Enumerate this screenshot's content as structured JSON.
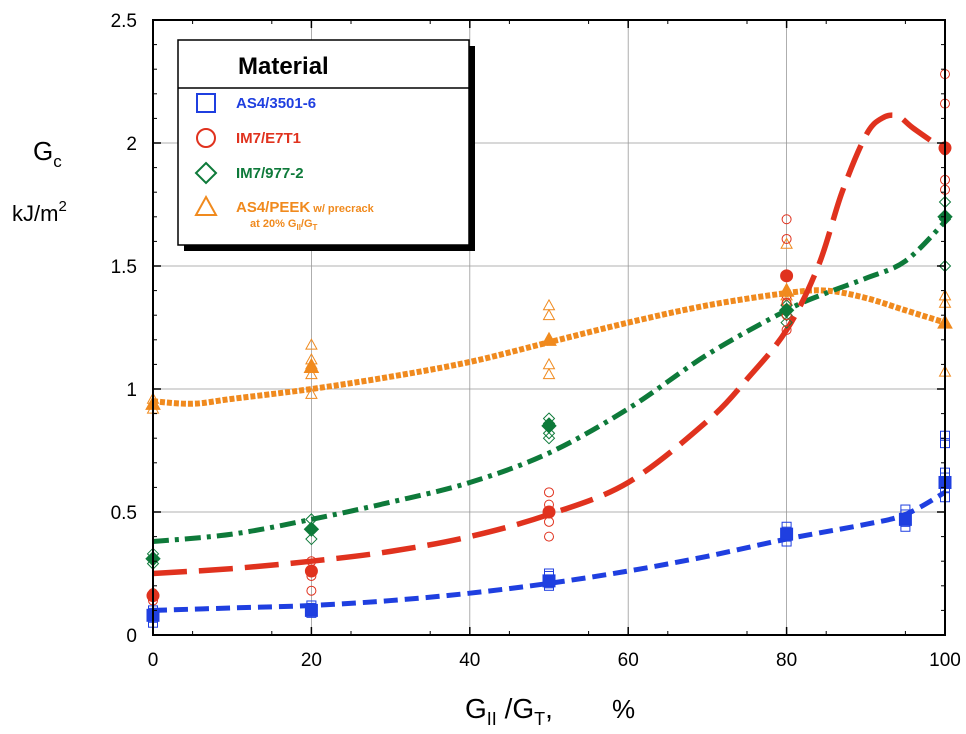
{
  "chart_data": {
    "type": "scatter",
    "xlabel": {
      "main": "G",
      "sub1": "II",
      "mid": " /G",
      "sub2": "T",
      "tail": ",",
      "unit": "%"
    },
    "ylabel": {
      "main": "G",
      "sub": "c",
      "unit": "kJ/m",
      "sup": "2"
    },
    "xlim": [
      0,
      100
    ],
    "ylim": [
      0,
      2.5
    ],
    "xticks": [
      "0",
      "20",
      "40",
      "60",
      "80",
      "100"
    ],
    "yticks": [
      "0",
      "0.5",
      "1",
      "1.5",
      "2",
      "2.5"
    ],
    "grid": true,
    "legend": {
      "title": "Material",
      "placement": "top-left",
      "sub_label": {
        "pre": "at 20% G",
        "s1": "II",
        "mid": "/G",
        "s2": "T"
      }
    },
    "series": [
      {
        "name": "AS4/3501-6",
        "color": "#1f3fe0",
        "marker": "square",
        "line_style": "short-dash",
        "raw_points": [
          [
            0,
            0.05
          ],
          [
            0,
            0.07
          ],
          [
            0,
            0.09
          ],
          [
            0,
            0.1
          ],
          [
            20,
            0.09
          ],
          [
            20,
            0.11
          ],
          [
            20,
            0.12
          ],
          [
            50,
            0.2
          ],
          [
            50,
            0.21
          ],
          [
            50,
            0.22
          ],
          [
            50,
            0.24
          ],
          [
            50,
            0.25
          ],
          [
            80,
            0.38
          ],
          [
            80,
            0.4
          ],
          [
            80,
            0.42
          ],
          [
            80,
            0.44
          ],
          [
            95,
            0.44
          ],
          [
            95,
            0.46
          ],
          [
            95,
            0.49
          ],
          [
            95,
            0.51
          ],
          [
            100,
            0.56
          ],
          [
            100,
            0.6
          ],
          [
            100,
            0.64
          ],
          [
            100,
            0.66
          ],
          [
            100,
            0.78
          ],
          [
            100,
            0.81
          ]
        ],
        "mean_points": [
          [
            0,
            0.08
          ],
          [
            20,
            0.1
          ],
          [
            50,
            0.22
          ],
          [
            80,
            0.41
          ],
          [
            95,
            0.47
          ],
          [
            100,
            0.62
          ]
        ],
        "fit_curve": [
          [
            0,
            0.1
          ],
          [
            10,
            0.11
          ],
          [
            20,
            0.12
          ],
          [
            30,
            0.14
          ],
          [
            40,
            0.17
          ],
          [
            50,
            0.21
          ],
          [
            60,
            0.26
          ],
          [
            70,
            0.32
          ],
          [
            80,
            0.39
          ],
          [
            90,
            0.45
          ],
          [
            95,
            0.49
          ],
          [
            100,
            0.58
          ]
        ]
      },
      {
        "name": "IM7/E7T1",
        "color": "#e0321e",
        "marker": "circle",
        "line_style": "long-dash",
        "raw_points": [
          [
            0,
            0.14
          ],
          [
            0,
            0.17
          ],
          [
            20,
            0.18
          ],
          [
            20,
            0.24
          ],
          [
            20,
            0.26
          ],
          [
            20,
            0.3
          ],
          [
            50,
            0.4
          ],
          [
            50,
            0.46
          ],
          [
            50,
            0.5
          ],
          [
            50,
            0.53
          ],
          [
            50,
            0.58
          ],
          [
            80,
            1.24
          ],
          [
            80,
            1.3
          ],
          [
            80,
            1.35
          ],
          [
            80,
            1.38
          ],
          [
            80,
            1.61
          ],
          [
            80,
            1.69
          ],
          [
            100,
            1.81
          ],
          [
            100,
            1.85
          ],
          [
            100,
            1.97
          ],
          [
            100,
            2.16
          ],
          [
            100,
            2.28
          ]
        ],
        "mean_points": [
          [
            0,
            0.16
          ],
          [
            20,
            0.26
          ],
          [
            50,
            0.5
          ],
          [
            80,
            1.46
          ],
          [
            100,
            1.98
          ]
        ],
        "fit_curve": [
          [
            0,
            0.25
          ],
          [
            10,
            0.27
          ],
          [
            20,
            0.3
          ],
          [
            30,
            0.34
          ],
          [
            40,
            0.4
          ],
          [
            50,
            0.49
          ],
          [
            60,
            0.62
          ],
          [
            70,
            0.87
          ],
          [
            75,
            1.04
          ],
          [
            80,
            1.24
          ],
          [
            84,
            1.5
          ],
          [
            87,
            1.8
          ],
          [
            90,
            2.03
          ],
          [
            92,
            2.1
          ],
          [
            94,
            2.11
          ],
          [
            96,
            2.06
          ],
          [
            100,
            1.97
          ]
        ]
      },
      {
        "name": "IM7/977-2",
        "color": "#0e7a3a",
        "marker": "diamond",
        "line_style": "dash-dot",
        "raw_points": [
          [
            0,
            0.29
          ],
          [
            0,
            0.33
          ],
          [
            20,
            0.39
          ],
          [
            20,
            0.43
          ],
          [
            20,
            0.47
          ],
          [
            50,
            0.8
          ],
          [
            50,
            0.82
          ],
          [
            50,
            0.86
          ],
          [
            50,
            0.88
          ],
          [
            80,
            1.27
          ],
          [
            80,
            1.3
          ],
          [
            80,
            1.34
          ],
          [
            100,
            1.5
          ],
          [
            100,
            1.69
          ],
          [
            100,
            1.76
          ]
        ],
        "mean_points": [
          [
            0,
            0.31
          ],
          [
            20,
            0.43
          ],
          [
            50,
            0.85
          ],
          [
            80,
            1.32
          ],
          [
            100,
            1.7
          ]
        ],
        "fit_curve": [
          [
            0,
            0.38
          ],
          [
            10,
            0.41
          ],
          [
            20,
            0.47
          ],
          [
            30,
            0.54
          ],
          [
            40,
            0.62
          ],
          [
            50,
            0.74
          ],
          [
            60,
            0.92
          ],
          [
            70,
            1.14
          ],
          [
            80,
            1.32
          ],
          [
            85,
            1.39
          ],
          [
            90,
            1.45
          ],
          [
            95,
            1.52
          ],
          [
            100,
            1.68
          ]
        ]
      },
      {
        "name": "AS4/PEEK",
        "name_suffix": "w/ precrack",
        "color": "#f08a1e",
        "marker": "triangle",
        "line_style": "dense-dot",
        "raw_points": [
          [
            0,
            0.92
          ],
          [
            0,
            0.94
          ],
          [
            0,
            0.96
          ],
          [
            20,
            0.98
          ],
          [
            20,
            1.06
          ],
          [
            20,
            1.1
          ],
          [
            20,
            1.12
          ],
          [
            20,
            1.18
          ],
          [
            50,
            1.06
          ],
          [
            50,
            1.1
          ],
          [
            50,
            1.2
          ],
          [
            50,
            1.3
          ],
          [
            50,
            1.34
          ],
          [
            80,
            1.36
          ],
          [
            80,
            1.38
          ],
          [
            80,
            1.4
          ],
          [
            80,
            1.59
          ],
          [
            100,
            1.07
          ],
          [
            100,
            1.27
          ],
          [
            100,
            1.35
          ],
          [
            100,
            1.38
          ]
        ],
        "mean_points": [
          [
            0,
            0.94
          ],
          [
            20,
            1.09
          ],
          [
            50,
            1.2
          ],
          [
            80,
            1.4
          ],
          [
            100,
            1.27
          ]
        ],
        "fit_curve": [
          [
            0,
            0.95
          ],
          [
            5,
            0.94
          ],
          [
            10,
            0.96
          ],
          [
            20,
            1.0
          ],
          [
            30,
            1.05
          ],
          [
            40,
            1.11
          ],
          [
            50,
            1.19
          ],
          [
            60,
            1.27
          ],
          [
            70,
            1.34
          ],
          [
            80,
            1.39
          ],
          [
            85,
            1.4
          ],
          [
            90,
            1.37
          ],
          [
            95,
            1.32
          ],
          [
            100,
            1.27
          ]
        ]
      }
    ]
  }
}
